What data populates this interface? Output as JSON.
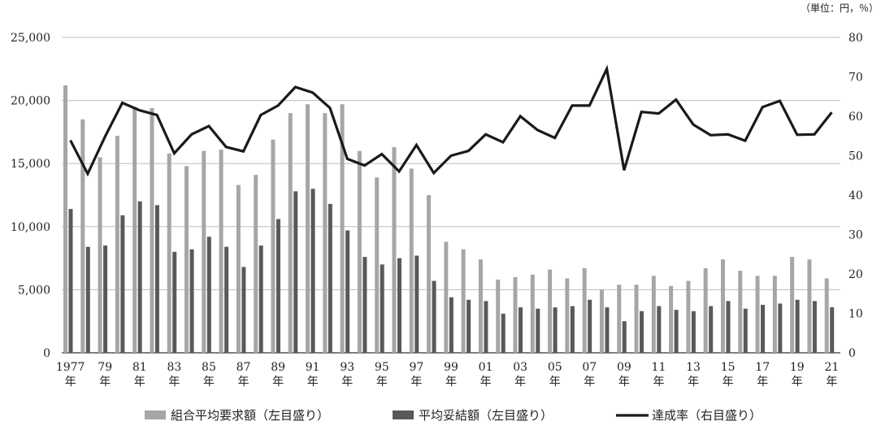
{
  "chart_data": {
    "type": "bar",
    "unit_label": "（単位：円，％）",
    "year_suffix": "年",
    "x_tick_labels": [
      "1977",
      "79",
      "81",
      "83",
      "85",
      "87",
      "89",
      "91",
      "93",
      "95",
      "97",
      "99",
      "01",
      "03",
      "05",
      "07",
      "09",
      "11",
      "13",
      "15",
      "17",
      "19",
      "21"
    ],
    "y_left_ticks": [
      "0",
      "5,000",
      "10,000",
      "15,000",
      "20,000",
      "25,000"
    ],
    "y_right_ticks": [
      "0",
      "10",
      "20",
      "30",
      "40",
      "50",
      "60",
      "70",
      "80"
    ],
    "ylim_left": [
      0,
      25000
    ],
    "ylim_right": [
      0,
      80
    ],
    "x": [
      1977,
      1978,
      1979,
      1980,
      1981,
      1982,
      1983,
      1984,
      1985,
      1986,
      1987,
      1988,
      1989,
      1990,
      1991,
      1992,
      1993,
      1994,
      1995,
      1996,
      1997,
      1998,
      1999,
      2000,
      2001,
      2002,
      2003,
      2004,
      2005,
      2006,
      2007,
      2008,
      2009,
      2010,
      2011,
      2012,
      2013,
      2014,
      2015,
      2016,
      2017,
      2018,
      2019,
      2020,
      2021
    ],
    "series": [
      {
        "name": "組合平均要求額（左目盛り）",
        "axis": "left",
        "color": "#a6a6a6",
        "values": [
          21200,
          18500,
          15500,
          17200,
          19500,
          19400,
          15800,
          14800,
          16000,
          16100,
          13300,
          14100,
          16900,
          19000,
          19700,
          19000,
          19700,
          16000,
          13900,
          16300,
          14600,
          12500,
          8800,
          8200,
          7400,
          5800,
          6000,
          6200,
          6600,
          5900,
          6700,
          5000,
          5400,
          5400,
          6100,
          5300,
          5700,
          6700,
          7400,
          6500,
          6100,
          6100,
          7600,
          7400,
          5900
        ]
      },
      {
        "name": "平均妥結額（左目盛り）",
        "axis": "left",
        "color": "#595959",
        "values": [
          11400,
          8400,
          8500,
          10900,
          12000,
          11700,
          8000,
          8200,
          9200,
          8400,
          6800,
          8500,
          10600,
          12800,
          13000,
          11800,
          9700,
          7600,
          7000,
          7500,
          7700,
          5700,
          4400,
          4200,
          4100,
          3100,
          3600,
          3500,
          3600,
          3700,
          4200,
          3600,
          2500,
          3300,
          3700,
          3400,
          3300,
          3700,
          4100,
          3500,
          3800,
          3900,
          4200,
          4100,
          3600
        ]
      },
      {
        "name": "達成率（右目盛り）",
        "axis": "right",
        "type": "line",
        "color": "#1a1a1a",
        "values": [
          53.9,
          45.4,
          54.8,
          63.4,
          61.5,
          60.3,
          50.6,
          55.4,
          57.5,
          52.2,
          51.1,
          60.3,
          62.7,
          67.4,
          66.0,
          62.1,
          49.2,
          47.5,
          50.4,
          46.0,
          52.7,
          45.6,
          50.0,
          51.2,
          55.4,
          53.4,
          60.0,
          56.5,
          54.5,
          62.7,
          62.7,
          72.0,
          46.3,
          61.1,
          60.7,
          64.2,
          57.9,
          55.2,
          55.4,
          53.8,
          62.3,
          63.9,
          55.3,
          55.4,
          61.0
        ]
      }
    ],
    "legend_position": "bottom",
    "grid": "horizontal"
  }
}
